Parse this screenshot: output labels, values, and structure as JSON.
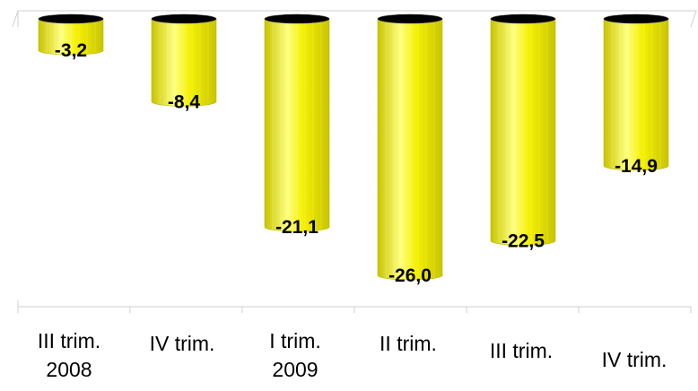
{
  "chart_data": {
    "type": "bar",
    "style": "3d-cylinder",
    "title": "",
    "xlabel": "",
    "ylabel": "",
    "categories": [
      [
        "III trim.",
        "2008"
      ],
      [
        "IV trim."
      ],
      [
        "I trim.",
        "2009"
      ],
      [
        "II trim."
      ],
      [
        "III trim."
      ],
      [
        "IV trim."
      ]
    ],
    "values": [
      -3.2,
      -8.4,
      -21.1,
      -26.0,
      -22.5,
      -14.9
    ],
    "value_labels": [
      "-3,2",
      "-8,4",
      "-21,1",
      "-26,0",
      "-22,5",
      "-14,9"
    ],
    "ylim": [
      -30,
      0
    ],
    "grid": false,
    "legend": "none",
    "colors": {
      "bar": "#f4f000",
      "bar_dark": "#c9c400",
      "bar_light": "#ffff80",
      "top": "#000000",
      "axis": "#cfcfcf"
    }
  }
}
